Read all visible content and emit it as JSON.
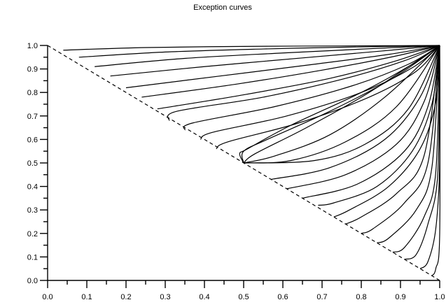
{
  "chart_data": {
    "type": "line",
    "title": "Exception curves",
    "xlabel": "",
    "ylabel": "",
    "xlim": [
      0.0,
      1.0
    ],
    "ylim": [
      0.0,
      1.0
    ],
    "x_ticks": [
      "0.0",
      "0.1",
      "0.2",
      "0.3",
      "0.4",
      "0.5",
      "0.6",
      "0.7",
      "0.8",
      "0.9",
      "1.0"
    ],
    "y_ticks": [
      "0.0",
      "0.1",
      "0.2",
      "0.3",
      "0.4",
      "0.5",
      "0.6",
      "0.7",
      "0.8",
      "0.9",
      "1.0"
    ],
    "grid": false,
    "legend": "none",
    "reference_line": {
      "style": "dashed",
      "points": [
        [
          0.0,
          1.0
        ],
        [
          1.0,
          0.0
        ]
      ]
    },
    "series": [
      {
        "points": [
          [
            0.04,
            0.98
          ],
          [
            0.25,
            0.991
          ],
          [
            0.5,
            0.996
          ],
          [
            0.75,
            0.998
          ],
          [
            1.0,
            1.0
          ]
        ]
      },
      {
        "points": [
          [
            0.08,
            0.95
          ],
          [
            0.3,
            0.972
          ],
          [
            0.55,
            0.985
          ],
          [
            0.8,
            0.994
          ],
          [
            1.0,
            1.0
          ]
        ]
      },
      {
        "points": [
          [
            0.12,
            0.91
          ],
          [
            0.35,
            0.945
          ],
          [
            0.6,
            0.968
          ],
          [
            0.82,
            0.986
          ],
          [
            1.0,
            1.0
          ]
        ]
      },
      {
        "points": [
          [
            0.16,
            0.87
          ],
          [
            0.4,
            0.91
          ],
          [
            0.65,
            0.947
          ],
          [
            0.85,
            0.976
          ],
          [
            1.0,
            1.0
          ]
        ]
      },
      {
        "points": [
          [
            0.2,
            0.82
          ],
          [
            0.44,
            0.87
          ],
          [
            0.68,
            0.92
          ],
          [
            0.87,
            0.962
          ],
          [
            1.0,
            1.0
          ]
        ]
      },
      {
        "points": [
          [
            0.24,
            0.78
          ],
          [
            0.48,
            0.835
          ],
          [
            0.7,
            0.895
          ],
          [
            0.88,
            0.952
          ],
          [
            1.0,
            1.0
          ]
        ]
      },
      {
        "points": [
          [
            0.28,
            0.73
          ],
          [
            0.5,
            0.79
          ],
          [
            0.72,
            0.86
          ],
          [
            0.89,
            0.935
          ],
          [
            1.0,
            1.0
          ]
        ]
      },
      {
        "points": [
          [
            0.31,
            0.68
          ],
          [
            0.33,
            0.72
          ],
          [
            0.55,
            0.78
          ],
          [
            0.76,
            0.86
          ],
          [
            0.91,
            0.935
          ],
          [
            1.0,
            1.0
          ]
        ]
      },
      {
        "points": [
          [
            0.35,
            0.64
          ],
          [
            0.37,
            0.67
          ],
          [
            0.58,
            0.74
          ],
          [
            0.78,
            0.83
          ],
          [
            0.92,
            0.92
          ],
          [
            1.0,
            1.0
          ]
        ]
      },
      {
        "points": [
          [
            0.39,
            0.6
          ],
          [
            0.42,
            0.63
          ],
          [
            0.61,
            0.7
          ],
          [
            0.8,
            0.8
          ],
          [
            0.93,
            0.905
          ],
          [
            1.0,
            1.0
          ]
        ]
      },
      {
        "points": [
          [
            0.43,
            0.56
          ],
          [
            0.46,
            0.59
          ],
          [
            0.64,
            0.67
          ],
          [
            0.82,
            0.78
          ],
          [
            0.94,
            0.89
          ],
          [
            1.0,
            1.0
          ]
        ]
      },
      {
        "points": [
          [
            0.5,
            0.5
          ],
          [
            0.49,
            0.54
          ],
          [
            0.51,
            0.56
          ],
          [
            0.62,
            0.66
          ],
          [
            0.8,
            0.8
          ],
          [
            0.93,
            0.92
          ],
          [
            1.0,
            1.0
          ]
        ]
      },
      {
        "points": [
          [
            0.5,
            0.5
          ],
          [
            0.5,
            0.55
          ],
          [
            0.56,
            0.6
          ],
          [
            0.72,
            0.72
          ],
          [
            0.88,
            0.86
          ],
          [
            1.0,
            1.0
          ]
        ]
      },
      {
        "points": [
          [
            0.5,
            0.5
          ],
          [
            0.53,
            0.54
          ],
          [
            0.66,
            0.65
          ],
          [
            0.82,
            0.8
          ],
          [
            1.0,
            1.0
          ]
        ]
      },
      {
        "points": [
          [
            0.5,
            0.5
          ],
          [
            0.58,
            0.53
          ],
          [
            0.72,
            0.62
          ],
          [
            0.86,
            0.78
          ],
          [
            1.0,
            1.0
          ]
        ]
      },
      {
        "points": [
          [
            0.5,
            0.5
          ],
          [
            0.62,
            0.51
          ],
          [
            0.76,
            0.59
          ],
          [
            0.89,
            0.74
          ],
          [
            1.0,
            1.0
          ]
        ]
      },
      {
        "points": [
          [
            0.5,
            0.5
          ],
          [
            0.68,
            0.51
          ],
          [
            0.81,
            0.58
          ],
          [
            0.92,
            0.73
          ],
          [
            1.0,
            1.0
          ]
        ]
      },
      {
        "points": [
          [
            0.57,
            0.43
          ],
          [
            0.72,
            0.48
          ],
          [
            0.86,
            0.6
          ],
          [
            0.95,
            0.78
          ],
          [
            1.0,
            1.0
          ]
        ]
      },
      {
        "points": [
          [
            0.61,
            0.39
          ],
          [
            0.76,
            0.45
          ],
          [
            0.89,
            0.58
          ],
          [
            0.96,
            0.76
          ],
          [
            1.0,
            1.0
          ]
        ]
      },
      {
        "points": [
          [
            0.65,
            0.35
          ],
          [
            0.79,
            0.41
          ],
          [
            0.91,
            0.55
          ],
          [
            0.97,
            0.74
          ],
          [
            1.0,
            1.0
          ]
        ]
      },
      {
        "points": [
          [
            0.69,
            0.32
          ],
          [
            0.73,
            0.33
          ],
          [
            0.84,
            0.4
          ],
          [
            0.93,
            0.55
          ],
          [
            0.98,
            0.75
          ],
          [
            1.0,
            1.0
          ]
        ]
      },
      {
        "points": [
          [
            0.73,
            0.27
          ],
          [
            0.77,
            0.3
          ],
          [
            0.87,
            0.4
          ],
          [
            0.95,
            0.56
          ],
          [
            0.99,
            0.76
          ],
          [
            1.0,
            1.0
          ]
        ]
      },
      {
        "points": [
          [
            0.76,
            0.24
          ],
          [
            0.8,
            0.27
          ],
          [
            0.89,
            0.37
          ],
          [
            0.96,
            0.53
          ],
          [
            1.0,
            1.0
          ]
        ]
      },
      {
        "points": [
          [
            0.8,
            0.2
          ],
          [
            0.83,
            0.22
          ],
          [
            0.91,
            0.33
          ],
          [
            0.97,
            0.5
          ],
          [
            1.0,
            1.0
          ]
        ]
      },
      {
        "points": [
          [
            0.84,
            0.16
          ],
          [
            0.87,
            0.18
          ],
          [
            0.94,
            0.3
          ],
          [
            0.98,
            0.48
          ],
          [
            1.0,
            1.0
          ]
        ]
      },
      {
        "points": [
          [
            0.88,
            0.12
          ],
          [
            0.91,
            0.14
          ],
          [
            0.96,
            0.27
          ],
          [
            0.99,
            0.46
          ],
          [
            1.0,
            1.0
          ]
        ]
      },
      {
        "points": [
          [
            0.91,
            0.09
          ],
          [
            0.94,
            0.11
          ],
          [
            0.97,
            0.24
          ],
          [
            0.995,
            0.45
          ],
          [
            1.0,
            1.0
          ]
        ]
      },
      {
        "points": [
          [
            0.95,
            0.05
          ],
          [
            0.97,
            0.08
          ],
          [
            0.99,
            0.22
          ],
          [
            1.0,
            0.5
          ],
          [
            1.0,
            1.0
          ]
        ]
      },
      {
        "points": [
          [
            0.98,
            0.02
          ],
          [
            0.99,
            0.05
          ],
          [
            1.0,
            0.2
          ],
          [
            1.0,
            1.0
          ]
        ]
      }
    ]
  }
}
